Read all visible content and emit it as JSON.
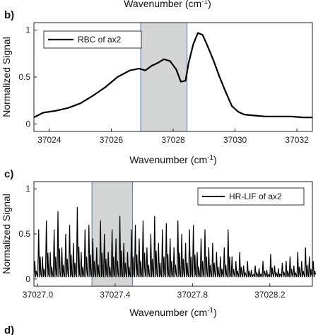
{
  "top_cut_label": "Wavenumber (cm",
  "top_cut_sup": "-1",
  "top_cut_close": ")",
  "bottom_cut_label": "d)",
  "chart_data": [
    {
      "type": "line",
      "panel_label": "b)",
      "ylabel": "Normalized Signal",
      "xlabel": "Wavenumber (cm",
      "xlabel_sup": "-1",
      "xlabel_close": ")",
      "xlim": [
        37023.5,
        37032.5
      ],
      "ylim": [
        -0.08,
        1.08
      ],
      "xticks": [
        37024,
        37026,
        37028,
        37030,
        37032
      ],
      "yticks": [
        0,
        0.5,
        1
      ],
      "ytick_labels": [
        "0",
        "0.5",
        "1"
      ],
      "legend_position": "top-left",
      "highlight_band": [
        37026.95,
        37028.45
      ],
      "series": [
        {
          "name": "RBC of ax2",
          "color": "#000000",
          "x": [
            37023.5,
            37023.8,
            37024.2,
            37024.6,
            37025.0,
            37025.4,
            37025.8,
            37026.2,
            37026.6,
            37026.9,
            37027.1,
            37027.3,
            37027.5,
            37027.7,
            37027.9,
            37028.1,
            37028.25,
            37028.4,
            37028.5,
            37028.65,
            37028.8,
            37028.95,
            37029.1,
            37029.3,
            37029.5,
            37029.7,
            37029.9,
            37030.1,
            37030.3,
            37030.6,
            37031.0,
            37031.4,
            37031.8,
            37032.2,
            37032.5
          ],
          "y": [
            0.07,
            0.12,
            0.14,
            0.17,
            0.22,
            0.3,
            0.39,
            0.5,
            0.57,
            0.59,
            0.57,
            0.62,
            0.65,
            0.69,
            0.67,
            0.58,
            0.45,
            0.46,
            0.65,
            0.85,
            0.97,
            0.95,
            0.84,
            0.68,
            0.5,
            0.34,
            0.19,
            0.13,
            0.1,
            0.09,
            0.08,
            0.08,
            0.08,
            0.07,
            0.07
          ]
        }
      ]
    },
    {
      "type": "line",
      "panel_label": "c)",
      "ylabel": "Normalized Signal",
      "xlabel": "Wavenumber (cm",
      "xlabel_sup": "-1",
      "xlabel_close": ")",
      "xlim": [
        37026.98,
        37028.42
      ],
      "ylim": [
        -0.08,
        1.08
      ],
      "xticks": [
        37027.0,
        37027.4,
        37027.8,
        37028.2
      ],
      "xtick_labels": [
        "37027.0",
        "37027.4",
        "37027.8",
        "37028.2"
      ],
      "yticks": [
        0,
        0.5,
        1
      ],
      "ytick_labels": [
        "0",
        "0.5",
        "1"
      ],
      "legend_position": "top-right",
      "highlight_band": [
        37027.28,
        37027.49
      ],
      "series": [
        {
          "name": "HR-LIF of ax2",
          "color": "#000000",
          "x": [
            37026.98,
            37027.0,
            37027.02,
            37027.04,
            37027.06,
            37027.08,
            37027.1,
            37027.12,
            37027.14,
            37027.16,
            37027.18,
            37027.2,
            37027.22,
            37027.24,
            37027.26,
            37027.28,
            37027.3,
            37027.32,
            37027.34,
            37027.36,
            37027.38,
            37027.4,
            37027.42,
            37027.44,
            37027.46,
            37027.48,
            37027.5,
            37027.52,
            37027.54,
            37027.56,
            37027.58,
            37027.6,
            37027.62,
            37027.64,
            37027.66,
            37027.68,
            37027.7,
            37027.72,
            37027.74,
            37027.76,
            37027.78,
            37027.8,
            37027.82,
            37027.84,
            37027.86,
            37027.88,
            37027.9,
            37027.92,
            37027.94,
            37027.96,
            37027.98,
            37028.0,
            37028.02,
            37028.04,
            37028.06,
            37028.08,
            37028.1,
            37028.12,
            37028.14,
            37028.16,
            37028.18,
            37028.2,
            37028.22,
            37028.24,
            37028.26,
            37028.28,
            37028.3,
            37028.32,
            37028.34,
            37028.36,
            37028.38,
            37028.4,
            37028.42
          ],
          "y": [
            0.2,
            0.55,
            0.25,
            0.65,
            0.3,
            0.55,
            0.75,
            0.35,
            0.5,
            0.6,
            0.4,
            0.8,
            0.3,
            0.55,
            0.6,
            0.45,
            0.35,
            0.65,
            0.5,
            0.3,
            0.55,
            0.45,
            0.7,
            0.4,
            0.3,
            0.55,
            0.6,
            0.45,
            0.65,
            0.35,
            0.5,
            0.7,
            0.4,
            0.55,
            0.62,
            0.45,
            0.35,
            0.65,
            0.5,
            0.4,
            0.55,
            0.6,
            0.3,
            0.45,
            0.55,
            0.35,
            0.4,
            0.3,
            0.25,
            0.35,
            0.55,
            0.25,
            0.2,
            0.3,
            0.15,
            0.2,
            0.1,
            0.15,
            0.12,
            0.2,
            0.1,
            0.28,
            0.15,
            0.12,
            0.18,
            0.2,
            0.25,
            0.15,
            0.3,
            0.2,
            0.35,
            0.25,
            0.2
          ]
        }
      ]
    }
  ]
}
